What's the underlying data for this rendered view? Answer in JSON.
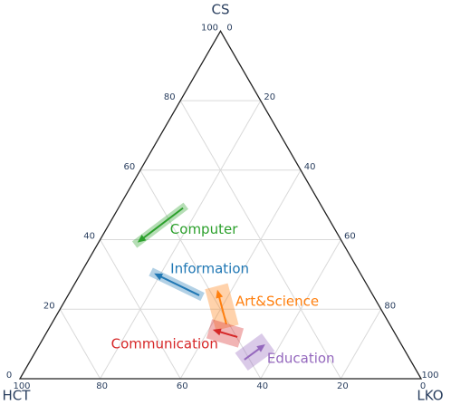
{
  "chart_data": {
    "type": "ternary",
    "axes": [
      "CS",
      "HCT",
      "LKO"
    ],
    "ticks": [
      [
        0,
        20,
        40,
        60,
        80,
        100
      ],
      [
        0,
        20,
        40,
        60,
        80,
        100
      ],
      [
        0,
        20,
        40,
        60,
        80,
        100
      ]
    ],
    "grid": true,
    "series": [
      {
        "name": "Computer",
        "color": "#2ca02c",
        "start": [
          49.1,
          34.8,
          16.1
        ],
        "end": [
          39.2,
          51.1,
          9.7
        ]
      },
      {
        "name": "Information",
        "color": "#1f77b4",
        "start": [
          24.0,
          43.3,
          32.7
        ],
        "end": [
          30.3,
          51.4,
          18.3
        ]
      },
      {
        "name": "Art&Science",
        "color": "#ff7f0e",
        "start": [
          15.7,
          40.7,
          43.6
        ],
        "end": [
          25.6,
          38.0,
          36.4
        ]
      },
      {
        "name": "Communication",
        "color": "#d62728",
        "start": [
          12.0,
          39.8,
          48.2
        ],
        "end": [
          14.1,
          44.9,
          41.0
        ]
      },
      {
        "name": "Education",
        "color": "#9467bd",
        "start": [
          5.5,
          41.3,
          53.2
        ],
        "end": [
          9.9,
          33.9,
          56.2
        ]
      }
    ]
  }
}
